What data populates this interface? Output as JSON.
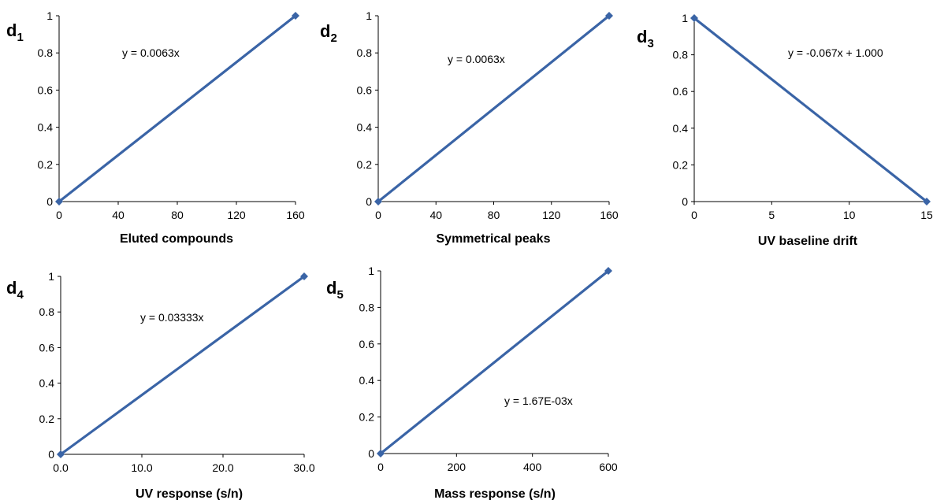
{
  "chart_data": [
    {
      "type": "line",
      "panel_label": "d",
      "panel_sub": "1",
      "xlabel": "Eluted compounds",
      "x_ticks": [
        "0",
        "40",
        "80",
        "120",
        "160"
      ],
      "y_ticks": [
        "0",
        "0.2",
        "0.4",
        "0.6",
        "0.8",
        "1"
      ],
      "xlim": [
        0,
        160
      ],
      "ylim": [
        0,
        1
      ],
      "x": [
        0,
        160
      ],
      "y": [
        0,
        1
      ],
      "equation": "y = 0.0063x",
      "grid": false,
      "color": "#3a64a6"
    },
    {
      "type": "line",
      "panel_label": "d",
      "panel_sub": "2",
      "xlabel": "Symmetrical peaks",
      "x_ticks": [
        "0",
        "40",
        "80",
        "120",
        "160"
      ],
      "y_ticks": [
        "0",
        "0.2",
        "0.4",
        "0.6",
        "0.8",
        "1"
      ],
      "xlim": [
        0,
        160
      ],
      "ylim": [
        0,
        1
      ],
      "x": [
        0,
        160
      ],
      "y": [
        0,
        1
      ],
      "equation": "y = 0.0063x",
      "grid": false,
      "color": "#3a64a6"
    },
    {
      "type": "line",
      "panel_label": "d",
      "panel_sub": "3",
      "xlabel": "UV baseline drift",
      "x_ticks": [
        "0",
        "5",
        "10",
        "15"
      ],
      "y_ticks": [
        "0",
        "0.2",
        "0.4",
        "0.6",
        "0.8",
        "1"
      ],
      "xlim": [
        0,
        15
      ],
      "ylim": [
        0,
        1
      ],
      "x": [
        0,
        15
      ],
      "y": [
        1,
        0
      ],
      "equation": "y = -0.067x + 1.000",
      "grid": false,
      "color": "#3a64a6"
    },
    {
      "type": "line",
      "panel_label": "d",
      "panel_sub": "4",
      "xlabel": "UV response (s/n)",
      "x_ticks": [
        "0.0",
        "10.0",
        "20.0",
        "30.0"
      ],
      "y_ticks": [
        "0",
        "0.2",
        "0.4",
        "0.6",
        "0.8",
        "1"
      ],
      "xlim": [
        0,
        30
      ],
      "ylim": [
        0,
        1
      ],
      "x": [
        0,
        30
      ],
      "y": [
        0,
        1
      ],
      "equation": "y = 0.03333x",
      "grid": false,
      "color": "#3a64a6"
    },
    {
      "type": "line",
      "panel_label": "d",
      "panel_sub": "5",
      "xlabel": "Mass response (s/n)",
      "x_ticks": [
        "0",
        "200",
        "400",
        "600"
      ],
      "y_ticks": [
        "0",
        "0.2",
        "0.4",
        "0.6",
        "0.8",
        "1"
      ],
      "xlim": [
        0,
        600
      ],
      "ylim": [
        0,
        1
      ],
      "x": [
        0,
        600
      ],
      "y": [
        0,
        1
      ],
      "equation": "y = 1.67E-03x",
      "grid": false,
      "color": "#3a64a6"
    }
  ]
}
